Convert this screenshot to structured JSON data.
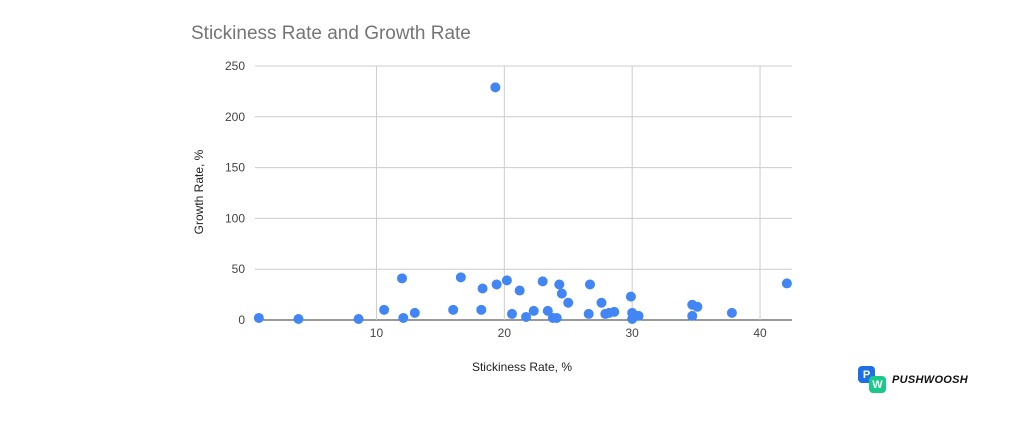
{
  "chart_data": {
    "type": "scatter",
    "title": "Stickiness Rate and Growth Rate",
    "xlabel": "Stickiness Rate, %",
    "ylabel": "Growth Rate, %",
    "xlim": [
      0.5,
      42.5
    ],
    "ylim": [
      0,
      250
    ],
    "xticks": [
      10,
      20,
      30,
      40
    ],
    "yticks": [
      0,
      50,
      100,
      150,
      200,
      250
    ],
    "grid": true,
    "point_color": "#4285f4",
    "points": [
      {
        "x": 0.8,
        "y": 2
      },
      {
        "x": 3.9,
        "y": 1
      },
      {
        "x": 8.6,
        "y": 1
      },
      {
        "x": 10.6,
        "y": 10
      },
      {
        "x": 12.0,
        "y": 41
      },
      {
        "x": 12.1,
        "y": 2
      },
      {
        "x": 13.0,
        "y": 7
      },
      {
        "x": 16.0,
        "y": 10
      },
      {
        "x": 16.6,
        "y": 42
      },
      {
        "x": 18.2,
        "y": 10
      },
      {
        "x": 18.3,
        "y": 31
      },
      {
        "x": 19.3,
        "y": 229
      },
      {
        "x": 19.4,
        "y": 35
      },
      {
        "x": 20.2,
        "y": 39
      },
      {
        "x": 20.6,
        "y": 6
      },
      {
        "x": 21.2,
        "y": 29
      },
      {
        "x": 21.7,
        "y": 3
      },
      {
        "x": 22.3,
        "y": 9
      },
      {
        "x": 23.0,
        "y": 38
      },
      {
        "x": 23.4,
        "y": 9
      },
      {
        "x": 23.8,
        "y": 2
      },
      {
        "x": 24.1,
        "y": 2
      },
      {
        "x": 24.3,
        "y": 35
      },
      {
        "x": 24.5,
        "y": 26
      },
      {
        "x": 25.0,
        "y": 17
      },
      {
        "x": 26.6,
        "y": 6
      },
      {
        "x": 26.7,
        "y": 35
      },
      {
        "x": 27.6,
        "y": 17
      },
      {
        "x": 27.9,
        "y": 6
      },
      {
        "x": 28.2,
        "y": 7
      },
      {
        "x": 28.6,
        "y": 8
      },
      {
        "x": 29.9,
        "y": 23
      },
      {
        "x": 30.0,
        "y": 7
      },
      {
        "x": 30.0,
        "y": 1
      },
      {
        "x": 30.5,
        "y": 4
      },
      {
        "x": 34.7,
        "y": 15
      },
      {
        "x": 34.7,
        "y": 4
      },
      {
        "x": 35.1,
        "y": 13
      },
      {
        "x": 37.8,
        "y": 7
      },
      {
        "x": 42.1,
        "y": 36
      }
    ]
  },
  "logo": {
    "p_letter": "P",
    "w_letter": "W",
    "text": "PUSHWOOSH"
  }
}
